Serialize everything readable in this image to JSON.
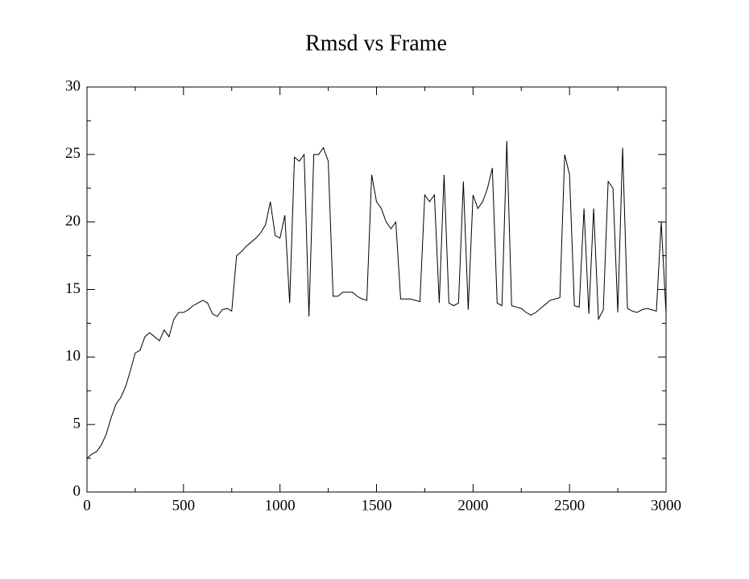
{
  "chart_data": {
    "type": "line",
    "title": "Rmsd vs Frame",
    "x": [
      0,
      25,
      50,
      75,
      100,
      125,
      150,
      175,
      200,
      225,
      250,
      275,
      300,
      325,
      350,
      375,
      400,
      425,
      450,
      475,
      500,
      525,
      550,
      575,
      600,
      625,
      650,
      675,
      700,
      725,
      750,
      775,
      800,
      825,
      850,
      875,
      900,
      925,
      950,
      975,
      1000,
      1025,
      1050,
      1075,
      1100,
      1125,
      1150,
      1175,
      1200,
      1225,
      1250,
      1275,
      1300,
      1325,
      1350,
      1375,
      1400,
      1425,
      1450,
      1475,
      1500,
      1525,
      1550,
      1575,
      1600,
      1625,
      1650,
      1675,
      1700,
      1725,
      1750,
      1775,
      1800,
      1825,
      1850,
      1875,
      1900,
      1925,
      1950,
      1975,
      2000,
      2025,
      2050,
      2075,
      2100,
      2125,
      2150,
      2175,
      2200,
      2225,
      2250,
      2275,
      2300,
      2325,
      2350,
      2375,
      2400,
      2425,
      2450,
      2475,
      2500,
      2525,
      2550,
      2575,
      2600,
      2625,
      2650,
      2675,
      2700,
      2725,
      2750,
      2775,
      2800,
      2825,
      2850,
      2875,
      2900,
      2925,
      2950,
      2975,
      3000
    ],
    "series": [
      {
        "color": "#000000",
        "values": [
          2.5,
          2.8,
          3,
          3.5,
          4.3,
          5.5,
          6.5,
          7,
          7.8,
          9,
          10.3,
          10.5,
          11.5,
          11.8,
          11.5,
          11.2,
          12,
          11.5,
          12.8,
          13.3,
          13.3,
          13.5,
          13.8,
          14,
          14.2,
          14,
          13.2,
          13,
          13.5,
          13.6,
          13.4,
          17.5,
          17.8,
          18.2,
          18.5,
          18.8,
          19.2,
          19.8,
          21.5,
          19,
          18.8,
          20.5,
          14,
          24.8,
          24.5,
          25,
          13,
          25,
          25,
          25.5,
          24.5,
          14.5,
          14.5,
          14.8,
          14.8,
          14.8,
          14.5,
          14.3,
          14.2,
          23.5,
          21.5,
          21,
          20,
          19.5,
          20,
          14.3,
          14.3,
          14.3,
          14.2,
          14.1,
          22,
          21.5,
          22,
          14,
          23.5,
          14,
          13.8,
          14,
          23,
          13.5,
          22,
          21,
          21.5,
          22.5,
          24,
          14,
          13.8,
          26,
          13.8,
          13.7,
          13.6,
          13.3,
          13.1,
          13.3,
          13.6,
          13.9,
          14.2,
          14.3,
          14.4,
          25,
          23.5,
          13.8,
          13.7,
          21,
          13.2,
          21,
          12.8,
          13.5,
          23,
          22.5,
          13.3,
          25.5,
          13.6,
          13.4,
          13.3,
          13.5,
          13.6,
          13.5,
          13.4,
          20,
          13.2
        ]
      }
    ],
    "xlim": [
      0,
      3000
    ],
    "xticks": [
      0,
      500,
      1000,
      1500,
      2000,
      2500,
      3000
    ],
    "xminor": [
      250,
      750,
      1250,
      1750,
      2250,
      2750
    ],
    "ylim": [
      0,
      30
    ],
    "yticks": [
      0,
      5,
      10,
      15,
      20,
      25,
      30
    ],
    "yminor": [
      2.5,
      7.5,
      12.5,
      17.5,
      22.5,
      27.5
    ]
  }
}
